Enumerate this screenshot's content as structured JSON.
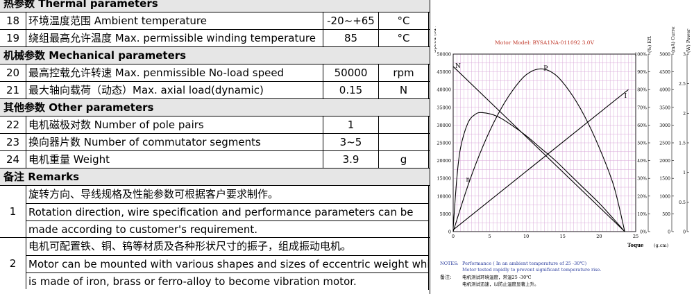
{
  "spec": {
    "sections": {
      "thermal": "热参数  Thermal parameters",
      "mechanical": "机械参数 Mechanical parameters",
      "other": "其他参数  Other parameters",
      "remarks": "备注 Remarks"
    },
    "rows": [
      {
        "no": "18",
        "name": "环境温度范围  Ambient temperature",
        "value": "-20~+65",
        "unit": "°C"
      },
      {
        "no": "19",
        "name": "绕组最高允许温度  Max. permissible winding temperature",
        "value": "85",
        "unit": "°C"
      },
      {
        "no": "20",
        "name": "最高控载允许转速 Max. penmissible No-load speed",
        "value": "50000",
        "unit": "rpm"
      },
      {
        "no": "21",
        "name": "最大轴向载荷（动态）Max. axial load(dynamic)",
        "value": "0.15",
        "unit": "N"
      },
      {
        "no": "22",
        "name": "电机磁极对数  Number of pole pairs",
        "value": "1",
        "unit": ""
      },
      {
        "no": "23",
        "name": "换向器片数  Number of commutator segments",
        "value": "3~5",
        "unit": ""
      },
      {
        "no": "24",
        "name": "电机重量 Weight",
        "value": "3.9",
        "unit": "g"
      }
    ],
    "remarks": [
      {
        "no": "1",
        "lines": [
          "旋转方向、导线规格及性能参数可根据客户要求制作。",
          "Rotation direction, wire specification and performance parameters can be",
          "made according to customer's requirement."
        ]
      },
      {
        "no": "2",
        "lines": [
          "电机可配置铁、铜、钨等材质及各种形状尺寸的振子，组成振动电机。",
          "Motor can be mounted with various shapes and sizes of eccentric weight which",
          "is made of iron, brass or ferro-alloy to become vibration motor."
        ]
      }
    ]
  },
  "chart": {
    "model": "Motor Model: BYSA1NA-011092  3.0V",
    "axis_titles": {
      "speed": "Speed (RPM)",
      "eff": "(%) Eff.",
      "current": "(mA) Current",
      "power": "(W) Power",
      "x": "Toque",
      "x_unit": "(g.cm)"
    },
    "curve_labels": {
      "n": "N",
      "p": "P",
      "i": "I",
      "eta": "n"
    },
    "notes": {
      "label_en": "NOTES:",
      "line1": "Performance ( In an ambient temperature of 25 -30℃)",
      "line2": "Motor tested rapidly to prevent significant temperature rise.",
      "label_cn": "备注:",
      "line3": "电机测试环境温度，常温25 -30℃",
      "line4": "电机测试迅速，以防止温度显著上升。"
    },
    "colors": {
      "grid": "#d9a9d9",
      "curve": "#000000",
      "model": "#c0392b",
      "notes": "#2c3e9e"
    }
  },
  "chart_data": {
    "type": "line",
    "title": "Motor Model: BYSA1NA-011092  3.0V",
    "xlabel": "Toque (g.cm)",
    "x_ticks": [
      0,
      5,
      10,
      15,
      20,
      25
    ],
    "xlim": [
      0,
      25
    ],
    "y_axes": [
      {
        "name": "Speed (RPM)",
        "lim": [
          0,
          50000
        ],
        "ticks": [
          0,
          5000,
          10000,
          15000,
          20000,
          25000,
          30000,
          35000,
          40000,
          45000,
          50000
        ]
      },
      {
        "name": "Eff. (%)",
        "lim": [
          0,
          100
        ],
        "ticks": [
          0,
          10,
          20,
          30,
          40,
          50,
          60,
          70,
          80,
          90,
          100
        ]
      },
      {
        "name": "Current (mA)",
        "lim": [
          0,
          5000
        ],
        "ticks": [
          0,
          500,
          1000,
          1500,
          2000,
          2500,
          3000,
          3500,
          4000,
          4500,
          5000
        ]
      },
      {
        "name": "Power (W)",
        "lim": [
          0,
          3
        ],
        "ticks": [
          0,
          0.5,
          1,
          1.5,
          2,
          2.5,
          3
        ]
      }
    ],
    "series": [
      {
        "name": "N",
        "axis": "Speed (RPM)",
        "x": [
          0,
          23.5
        ],
        "y": [
          46500,
          0
        ]
      },
      {
        "name": "I",
        "axis": "Current (mA)",
        "x": [
          0,
          24
        ],
        "y": [
          50,
          4000
        ]
      },
      {
        "name": "P",
        "axis": "Power (W)",
        "x": [
          0,
          2,
          4,
          6,
          8,
          10,
          12,
          14,
          16,
          18,
          20,
          22,
          23.5
        ],
        "y": [
          0,
          0.77,
          1.42,
          1.95,
          2.36,
          2.65,
          2.75,
          2.65,
          2.36,
          1.95,
          1.42,
          0.77,
          0
        ]
      },
      {
        "name": "n",
        "axis": "Eff. (%)",
        "x": [
          0,
          0.5,
          1,
          2,
          3,
          4,
          6,
          8,
          10,
          12,
          14,
          16,
          18,
          20,
          22,
          23.5
        ],
        "y": [
          2,
          30,
          47,
          61,
          66,
          67,
          65,
          60,
          54,
          47,
          40,
          32,
          24,
          16,
          7,
          0
        ]
      }
    ]
  }
}
